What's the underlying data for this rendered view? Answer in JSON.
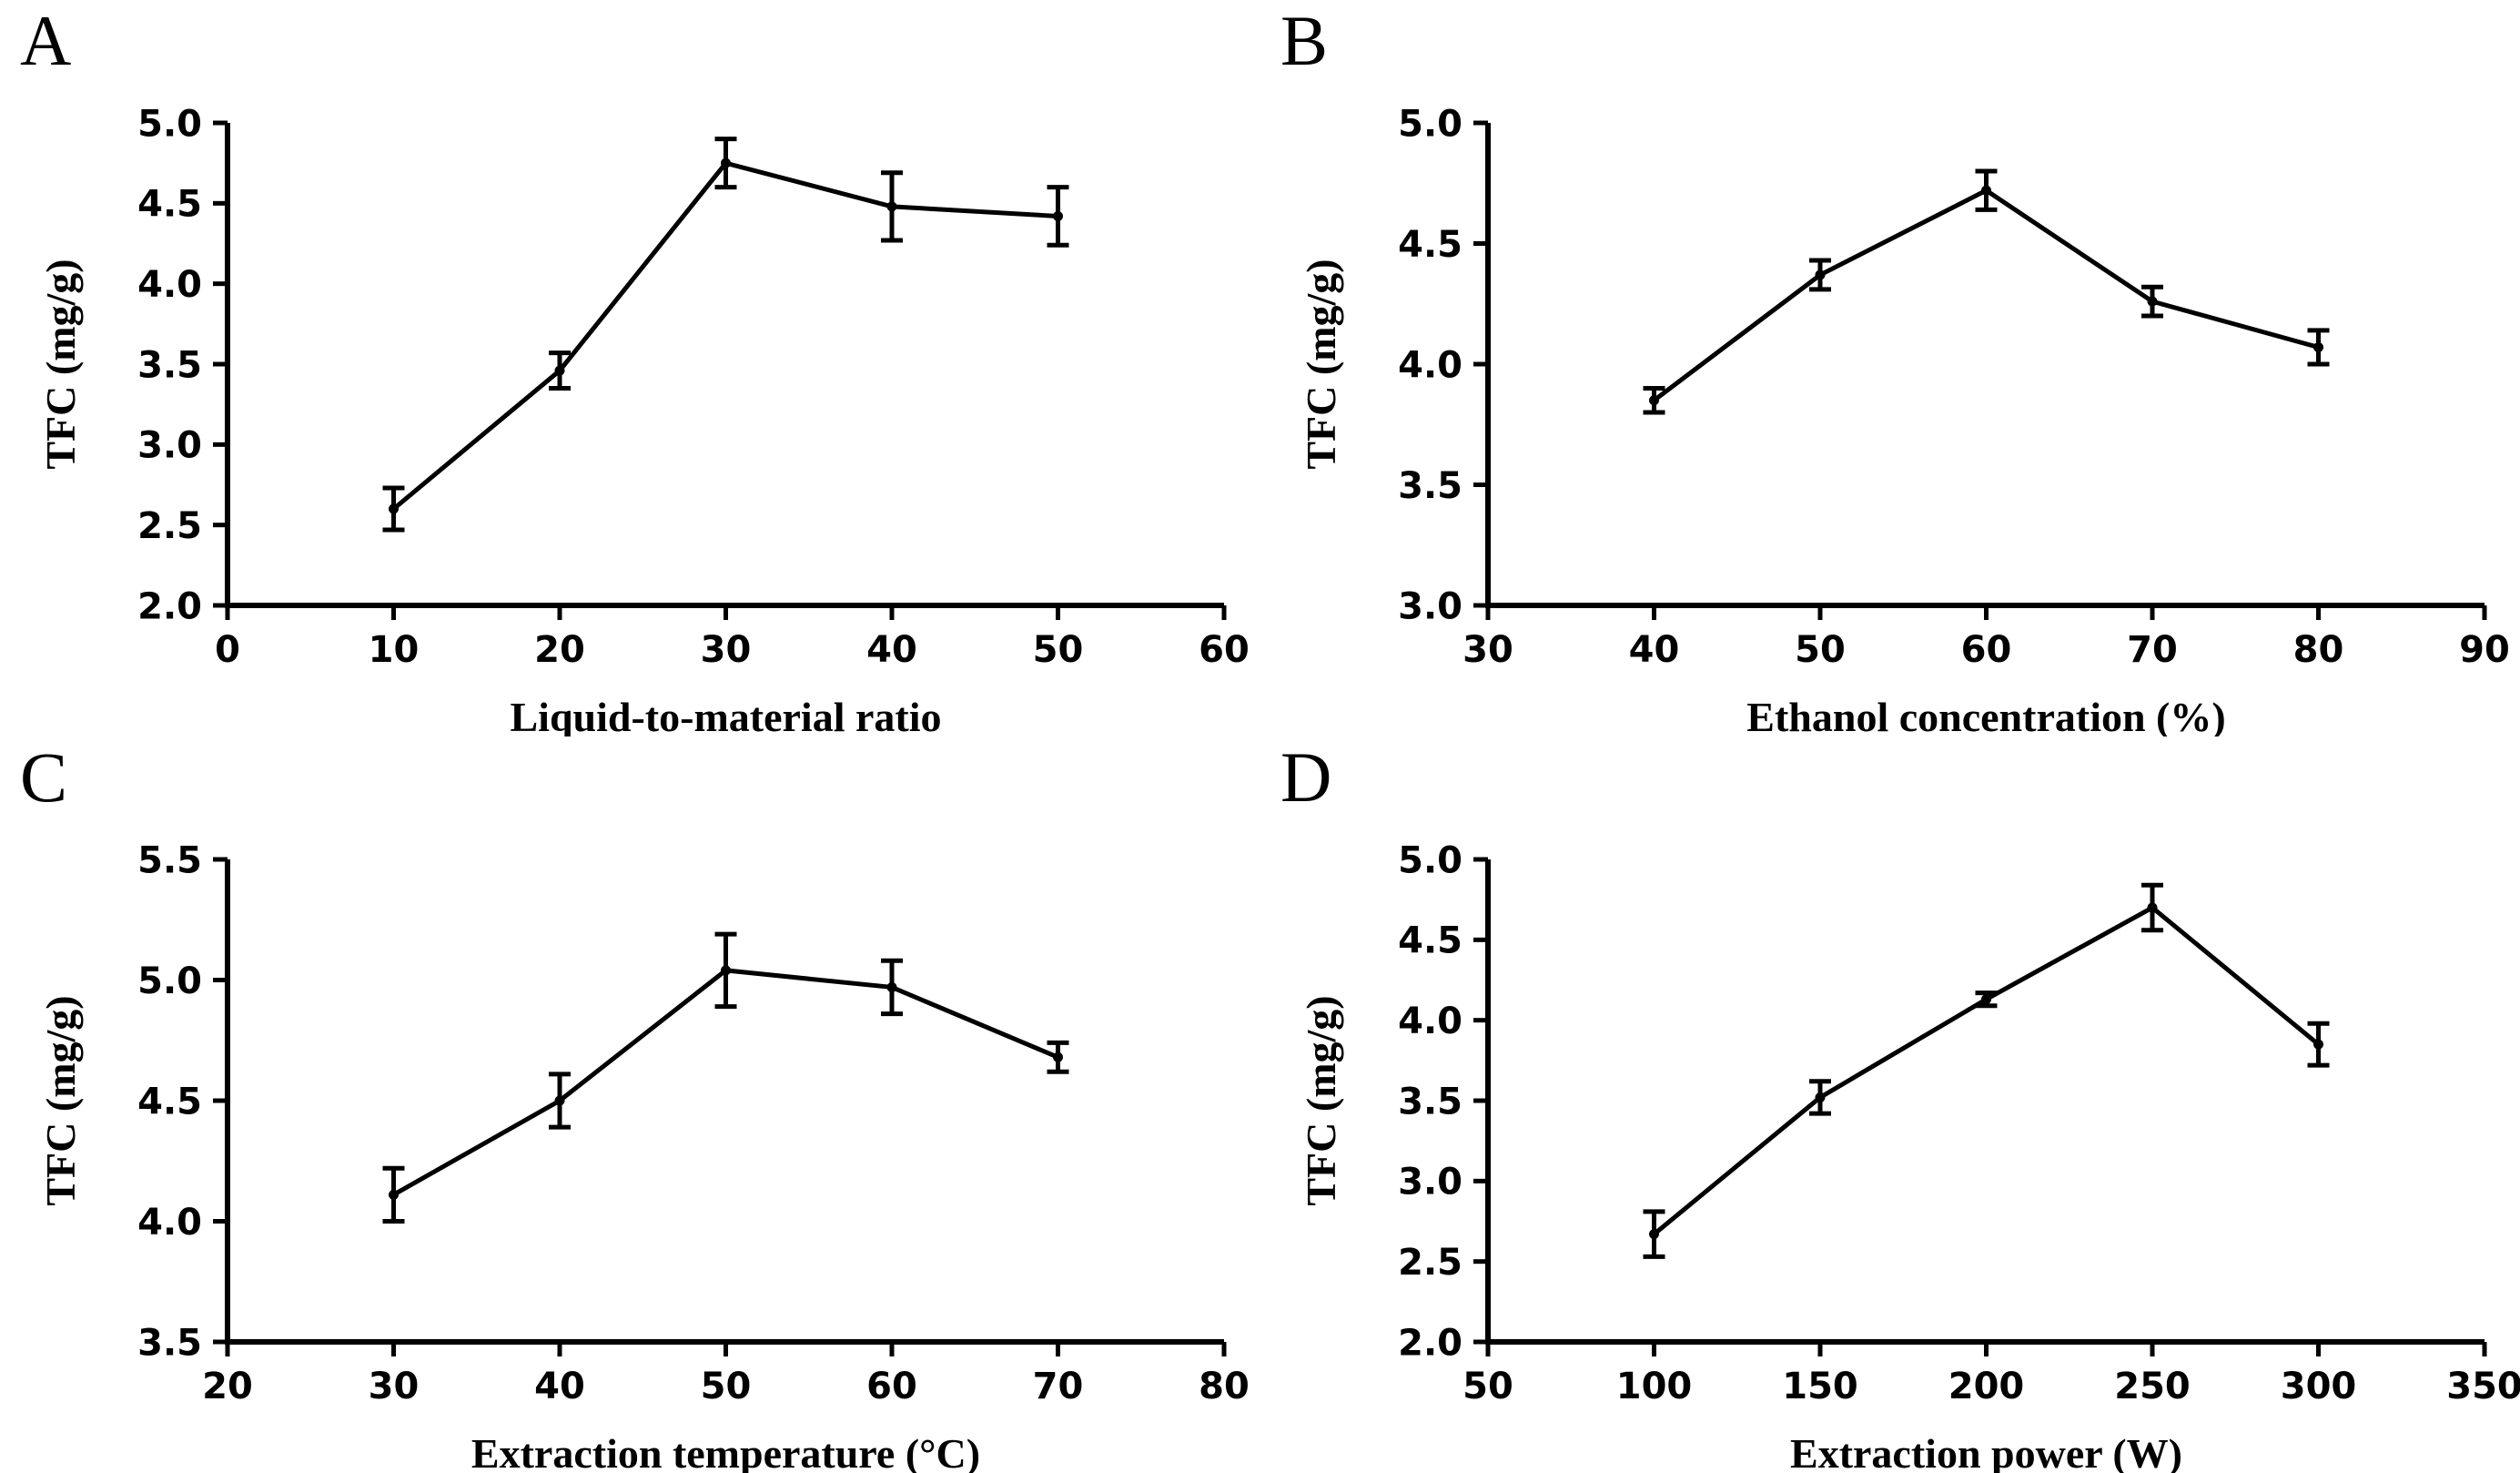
{
  "figure": {
    "background": "#ffffff",
    "ink_color": "#000000",
    "marker_shape": "filled-circle",
    "error_bar_style": "vertical-with-caps"
  },
  "chart_data": [
    {
      "letter": "A",
      "type": "line",
      "xlabel": "Liquid-to-material ratio",
      "ylabel": "TFC (mg/g)",
      "xlim": [
        0,
        60
      ],
      "ylim": [
        2.0,
        5.0
      ],
      "xtick_labels": [
        "0",
        "10",
        "20",
        "30",
        "40",
        "50",
        "60"
      ],
      "ytick_labels": [
        "2.0",
        "2.5",
        "3.0",
        "3.5",
        "4.0",
        "4.5",
        "5.0"
      ],
      "x": [
        10,
        20,
        30,
        40,
        50
      ],
      "y": [
        2.6,
        3.46,
        4.75,
        4.48,
        4.42
      ],
      "yerr": [
        0.13,
        0.11,
        0.15,
        0.21,
        0.18
      ],
      "line_color": "#000000",
      "grid": false,
      "legend": "none"
    },
    {
      "letter": "B",
      "type": "line",
      "xlabel": "Ethanol concentration (%)",
      "ylabel": "TFC (mg/g)",
      "xlim": [
        30,
        90
      ],
      "ylim": [
        3.0,
        5.0
      ],
      "xtick_labels": [
        "30",
        "40",
        "50",
        "60",
        "70",
        "80",
        "90"
      ],
      "ytick_labels": [
        "3.0",
        "3.5",
        "4.0",
        "4.5",
        "5.0"
      ],
      "x": [
        40,
        50,
        60,
        70,
        80
      ],
      "y": [
        3.85,
        4.37,
        4.72,
        4.26,
        4.07
      ],
      "yerr": [
        0.05,
        0.06,
        0.08,
        0.06,
        0.07
      ],
      "line_color": "#000000",
      "grid": false,
      "legend": "none"
    },
    {
      "letter": "C",
      "type": "line",
      "xlabel": "Extraction temperature (°C)",
      "ylabel": "TFC (mg/g)",
      "xlim": [
        20,
        80
      ],
      "ylim": [
        3.5,
        5.5
      ],
      "xtick_labels": [
        "20",
        "30",
        "40",
        "50",
        "60",
        "70",
        "80"
      ],
      "ytick_labels": [
        "3.5",
        "4.0",
        "4.5",
        "5.0",
        "5.5"
      ],
      "x": [
        30,
        40,
        50,
        60,
        70
      ],
      "y": [
        4.11,
        4.5,
        5.04,
        4.97,
        4.68
      ],
      "yerr": [
        0.11,
        0.11,
        0.15,
        0.11,
        0.06
      ],
      "line_color": "#000000",
      "grid": false,
      "legend": "none"
    },
    {
      "letter": "D",
      "type": "line",
      "xlabel": "Extraction power (W)",
      "ylabel": "TFC (mg/g)",
      "xlim": [
        50,
        350
      ],
      "ylim": [
        2.0,
        5.0
      ],
      "xtick_labels": [
        "50",
        "100",
        "150",
        "200",
        "250",
        "300",
        "350"
      ],
      "ytick_labels": [
        "2.0",
        "2.5",
        "3.0",
        "3.5",
        "4.0",
        "4.5",
        "5.0"
      ],
      "x": [
        100,
        150,
        200,
        250,
        300
      ],
      "y": [
        2.67,
        3.52,
        4.13,
        4.7,
        3.85
      ],
      "yerr": [
        0.14,
        0.1,
        0.04,
        0.14,
        0.13
      ],
      "line_color": "#000000",
      "grid": false,
      "legend": "none"
    }
  ]
}
